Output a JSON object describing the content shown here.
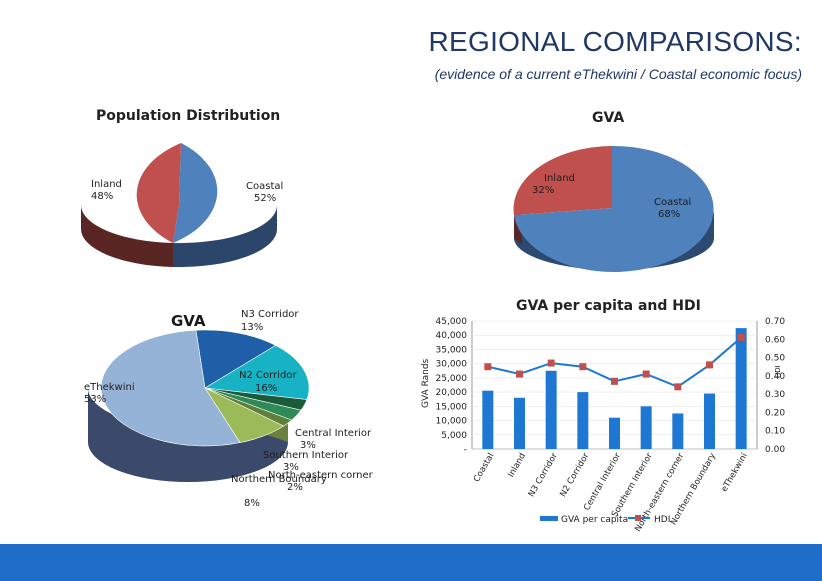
{
  "slide": {
    "title": "REGIONAL COMPARISONS:",
    "subtitle": "(evidence of a current eThekwini / Coastal economic focus)"
  },
  "colors": {
    "blue": "#4f81bd",
    "red": "#c0504d",
    "footer": "#1e6ec8",
    "line": "#00b0f0",
    "marker": "#c0504d"
  },
  "chart_data": [
    {
      "type": "pie",
      "title": "Population Distribution",
      "labels": [
        "Coastal",
        "Inland"
      ],
      "values": [
        52,
        48
      ],
      "value_labels": [
        "52%",
        "48%"
      ],
      "colors": [
        "#4f81bd",
        "#c0504d"
      ]
    },
    {
      "type": "pie",
      "title": "GVA",
      "labels": [
        "Coastal",
        "Inland"
      ],
      "values": [
        68,
        32
      ],
      "value_labels": [
        "68%",
        "32%"
      ],
      "colors": [
        "#4f81bd",
        "#c0504d"
      ]
    },
    {
      "type": "pie",
      "title": "GVA",
      "labels": [
        "eThekwini",
        "N3 Corridor",
        "N2 Corridor",
        "Central Interior",
        "Southern Interior",
        "North-eastern corner",
        "Northern Boundary"
      ],
      "values": [
        53,
        13,
        16,
        3,
        3,
        2,
        8
      ],
      "value_labels": [
        "53%",
        "13%",
        "16%",
        "3%",
        "3%",
        "2%",
        "8%"
      ],
      "colors": [
        "#95b3d7",
        "#1f5fa8",
        "#17b3c4",
        "#1a5c3a",
        "#2e8b57",
        "#5f7f3a",
        "#9bbb59"
      ]
    },
    {
      "type": "bar",
      "title": "GVA per capita and HDI",
      "categories": [
        "Coastal",
        "Inland",
        "N3 Corridor",
        "N2 Corridor",
        "Central Interior",
        "Southern Interior",
        "North-eastern corner",
        "Northern Boundary",
        "eThekwini"
      ],
      "ylabel": "GVA Rands",
      "ylim": [
        0,
        45000
      ],
      "yticks": [
        "-",
        "5,000",
        "10,000",
        "15,000",
        "20,000",
        "25,000",
        "30,000",
        "35,000",
        "40,000",
        "45,000"
      ],
      "y2label": "HDI",
      "y2lim": [
        0,
        0.7
      ],
      "y2ticks": [
        "0.00",
        "0.10",
        "0.20",
        "0.30",
        "0.40",
        "0.50",
        "0.60",
        "0.70"
      ],
      "series": [
        {
          "name": "GVA per capita",
          "type": "bar",
          "values": [
            20500,
            18000,
            27500,
            20000,
            11000,
            15000,
            12500,
            19500,
            42500
          ]
        },
        {
          "name": "HDI",
          "type": "line",
          "axis": "secondary",
          "values": [
            0.45,
            0.41,
            0.47,
            0.45,
            0.37,
            0.41,
            0.34,
            0.46,
            0.61
          ]
        }
      ],
      "legend": "bottom"
    }
  ]
}
